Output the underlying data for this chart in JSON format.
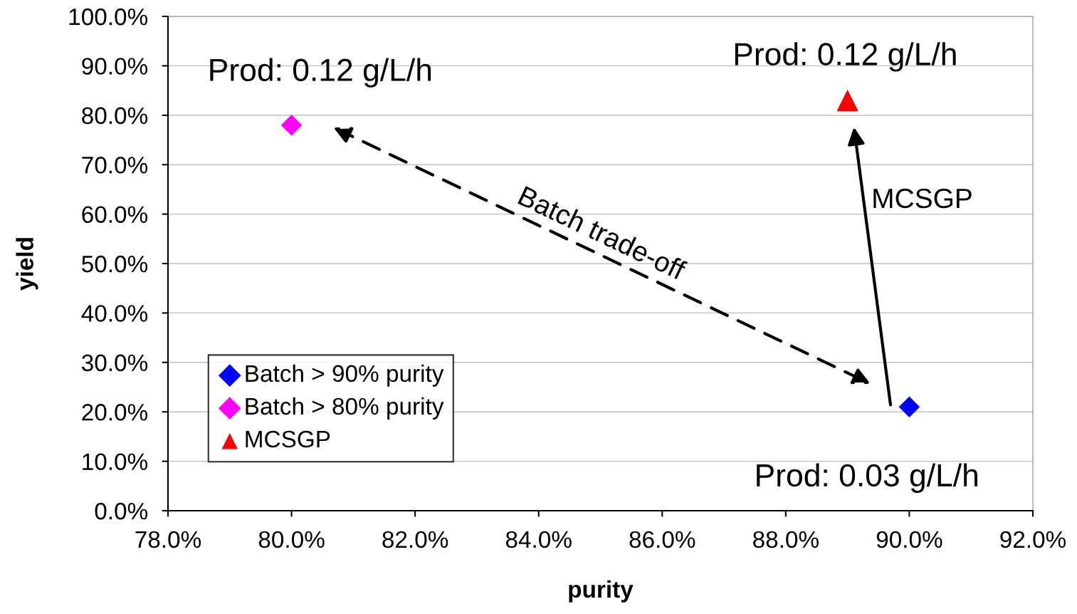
{
  "chart_data": {
    "type": "scatter",
    "xlabel": "purity",
    "ylabel": "yield",
    "xlim": [
      78,
      92
    ],
    "ylim": [
      0,
      100
    ],
    "xticks": [
      {
        "value": 78,
        "label": "78.0%"
      },
      {
        "value": 80,
        "label": "80.0%"
      },
      {
        "value": 82,
        "label": "82.0%"
      },
      {
        "value": 84,
        "label": "84.0%"
      },
      {
        "value": 86,
        "label": "86.0%"
      },
      {
        "value": 88,
        "label": "88.0%"
      },
      {
        "value": 90,
        "label": "90.0%"
      },
      {
        "value": 92,
        "label": "92.0%"
      }
    ],
    "yticks": [
      {
        "value": 0,
        "label": "0.0%"
      },
      {
        "value": 10,
        "label": "10.0%"
      },
      {
        "value": 20,
        "label": "20.0%"
      },
      {
        "value": 30,
        "label": "30.0%"
      },
      {
        "value": 40,
        "label": "40.0%"
      },
      {
        "value": 50,
        "label": "50.0%"
      },
      {
        "value": 60,
        "label": "60.0%"
      },
      {
        "value": 70,
        "label": "70.0%"
      },
      {
        "value": 80,
        "label": "80.0%"
      },
      {
        "value": 90,
        "label": "90.0%"
      },
      {
        "value": 100,
        "label": "100.0%"
      }
    ],
    "grid": "y",
    "legend": "bottom left",
    "series": [
      {
        "name": "Batch > 90% purity",
        "color": "#0000ff",
        "marker": "diamond",
        "x": [
          90.0
        ],
        "values": [
          21.0
        ]
      },
      {
        "name": "Batch > 80% purity",
        "color": "#ff00ff",
        "marker": "diamond",
        "x": [
          80.0
        ],
        "values": [
          78.0
        ]
      },
      {
        "name": "MCSGP",
        "color": "#ff0000",
        "marker": "triangle",
        "x": [
          89.0
        ],
        "values": [
          83.0
        ]
      }
    ],
    "annotations": [
      "Prod: 0.12 g/L/h",
      "Prod: 0.12 g/L/h",
      "Prod: 0.03 g/L/h",
      "Batch trade-off",
      "MCSGP"
    ]
  }
}
